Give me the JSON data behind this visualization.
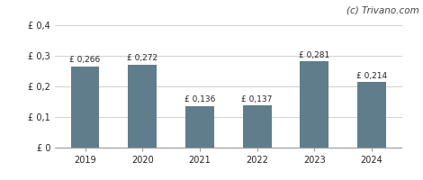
{
  "categories": [
    "2019",
    "2020",
    "2021",
    "2022",
    "2023",
    "2024"
  ],
  "values": [
    0.266,
    0.272,
    0.136,
    0.137,
    0.281,
    0.214
  ],
  "labels": [
    "£ 0,266",
    "£ 0,272",
    "£ 0,136",
    "£ 0,137",
    "£ 0,281",
    "£ 0,214"
  ],
  "bar_color": "#607d8b",
  "ylim": [
    0,
    0.4
  ],
  "yticks": [
    0.0,
    0.1,
    0.2,
    0.3,
    0.4
  ],
  "ytick_labels": [
    "£ 0",
    "£ 0,1",
    "£ 0,2",
    "£ 0,3",
    "£ 0,4"
  ],
  "watermark": "(c) Trivano.com",
  "background_color": "#ffffff",
  "grid_color": "#d0d0d0",
  "label_fontsize": 6.5,
  "tick_fontsize": 7.0,
  "watermark_fontsize": 7.5,
  "bar_width": 0.5
}
